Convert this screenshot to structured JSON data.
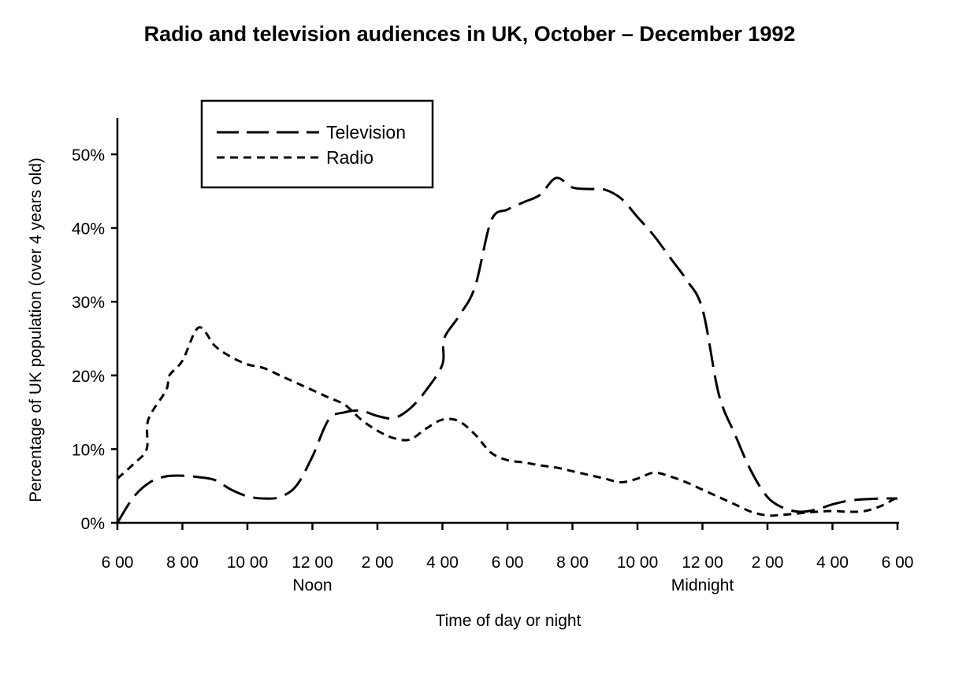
{
  "chart_data": {
    "type": "line",
    "title": "Radio and television audiences in UK, October – December 1992",
    "xlabel": "Time of day or night",
    "ylabel": "Percentage of UK population (over 4 years old)",
    "x_unit": "hours elapsed from 6 00",
    "xlim": [
      0,
      24
    ],
    "ylim": [
      0,
      50
    ],
    "x_ticks": [
      {
        "x": 0,
        "label": "6 00"
      },
      {
        "x": 2,
        "label": "8 00"
      },
      {
        "x": 4,
        "label": "10 00"
      },
      {
        "x": 6,
        "label": "12 00"
      },
      {
        "x": 8,
        "label": "2 00"
      },
      {
        "x": 10,
        "label": "4 00"
      },
      {
        "x": 12,
        "label": "6 00"
      },
      {
        "x": 14,
        "label": "8 00"
      },
      {
        "x": 16,
        "label": "10 00"
      },
      {
        "x": 18,
        "label": "12 00"
      },
      {
        "x": 20,
        "label": "2 00"
      },
      {
        "x": 22,
        "label": "4 00"
      },
      {
        "x": 24,
        "label": "6 00"
      }
    ],
    "x_annotations": [
      {
        "x": 6,
        "label": "Noon"
      },
      {
        "x": 18,
        "label": "Midnight"
      }
    ],
    "y_ticks": [
      {
        "y": 0,
        "label": "0%"
      },
      {
        "y": 10,
        "label": "10%"
      },
      {
        "y": 20,
        "label": "20%"
      },
      {
        "y": 30,
        "label": "30%"
      },
      {
        "y": 40,
        "label": "40%"
      },
      {
        "y": 50,
        "label": "50%"
      }
    ],
    "grid": false,
    "legend": "top-left",
    "series": [
      {
        "name": "Television",
        "style": "long-dash",
        "color": "#000000",
        "x": [
          0,
          0.5,
          1,
          1.5,
          2,
          2.5,
          3,
          3.5,
          4,
          4.5,
          5,
          5.5,
          6,
          6.5,
          7,
          7.5,
          8,
          8.5,
          9,
          9.5,
          10,
          10.05,
          10.5,
          11,
          11.5,
          12,
          12.5,
          13,
          13.5,
          14,
          14.5,
          15,
          15.5,
          16,
          16.5,
          17,
          17.5,
          18,
          18.5,
          19,
          19.5,
          20,
          20.5,
          21,
          21.5,
          22,
          22.5,
          23,
          23.5,
          24
        ],
        "y": [
          0,
          3.5,
          5.5,
          6.3,
          6.4,
          6.2,
          5.8,
          4.5,
          3.6,
          3.3,
          3.5,
          5,
          9,
          14,
          15,
          15.2,
          14.5,
          14.2,
          15.5,
          18,
          21.5,
          25,
          28,
          32,
          41,
          42.5,
          43.5,
          44.5,
          46.8,
          45.5,
          45.3,
          45.2,
          44,
          41.5,
          39,
          36,
          33,
          29,
          17.5,
          12,
          7,
          3.5,
          2,
          1.5,
          1.8,
          2.5,
          3,
          3.2,
          3.3,
          3.3
        ]
      },
      {
        "name": "Radio",
        "style": "short-dash",
        "color": "#000000",
        "x": [
          0,
          0.5,
          0.9,
          0.95,
          1.5,
          1.6,
          2,
          2.5,
          3,
          3.5,
          4,
          4.5,
          5,
          5.5,
          6,
          6.5,
          7,
          7.5,
          8,
          8.5,
          9,
          9.5,
          10,
          10.5,
          11,
          11.5,
          12,
          12.5,
          13,
          13.5,
          14,
          14.5,
          15,
          15.5,
          16,
          16.5,
          17,
          17.5,
          18,
          18.5,
          19,
          19.5,
          20,
          20.5,
          21,
          21.5,
          22,
          22.5,
          23,
          23.5,
          24
        ],
        "y": [
          6,
          8,
          10,
          14,
          18,
          20,
          22,
          26.5,
          24,
          22.5,
          21.5,
          21,
          20,
          19,
          18,
          17,
          16,
          14,
          12.5,
          11.5,
          11.3,
          12.8,
          14,
          13.8,
          12,
          9.5,
          8.5,
          8.2,
          7.8,
          7.5,
          7,
          6.5,
          6,
          5.5,
          6,
          6.8,
          6.3,
          5.5,
          4.5,
          3.5,
          2.5,
          1.5,
          1,
          1.1,
          1.3,
          1.5,
          1.6,
          1.5,
          1.6,
          2.3,
          3.5
        ]
      }
    ]
  }
}
